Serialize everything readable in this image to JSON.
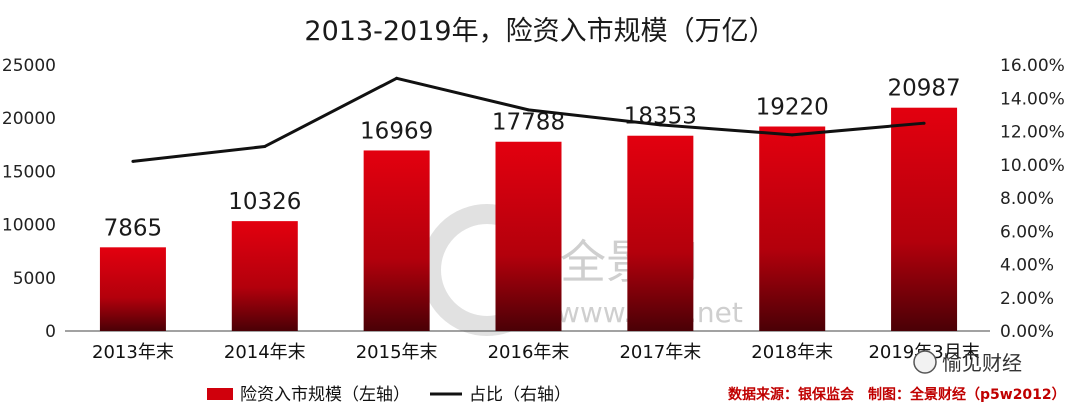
{
  "chart_data": {
    "type": "bar",
    "title": "2013-2019年，险资入市规模（万亿）",
    "categories": [
      "2013年末",
      "2014年末",
      "2015年末",
      "2016年末",
      "2017年末",
      "2018年末",
      "2019年3月末"
    ],
    "series": [
      {
        "name": "险资入市规模（左轴）",
        "type": "bar",
        "axis": "left",
        "color": "#c8000a",
        "values": [
          7865,
          10326,
          16969,
          17788,
          18353,
          19220,
          20987
        ]
      },
      {
        "name": "占比（右轴）",
        "type": "line",
        "axis": "right",
        "color": "#111111",
        "values": [
          10.2,
          11.1,
          15.2,
          13.3,
          12.4,
          11.8,
          12.5
        ]
      }
    ],
    "left_axis": {
      "ylim": [
        0,
        25000
      ],
      "ticks": [
        "0",
        "5000",
        "10000",
        "15000",
        "20000",
        "25000"
      ]
    },
    "right_axis": {
      "ylim": [
        0,
        16
      ],
      "ticks": [
        "0.00%",
        "2.00%",
        "4.00%",
        "6.00%",
        "8.00%",
        "10.00%",
        "12.00%",
        "14.00%",
        "16.00%"
      ]
    },
    "grid": false,
    "legend_position": "bottom-left"
  },
  "source_note": "数据来源：银保监会　制图：全景财经（p5w2012）",
  "watermark": {
    "name": "全景网",
    "url": "www.p5w.net"
  },
  "wechat_badge": "愉见财经"
}
